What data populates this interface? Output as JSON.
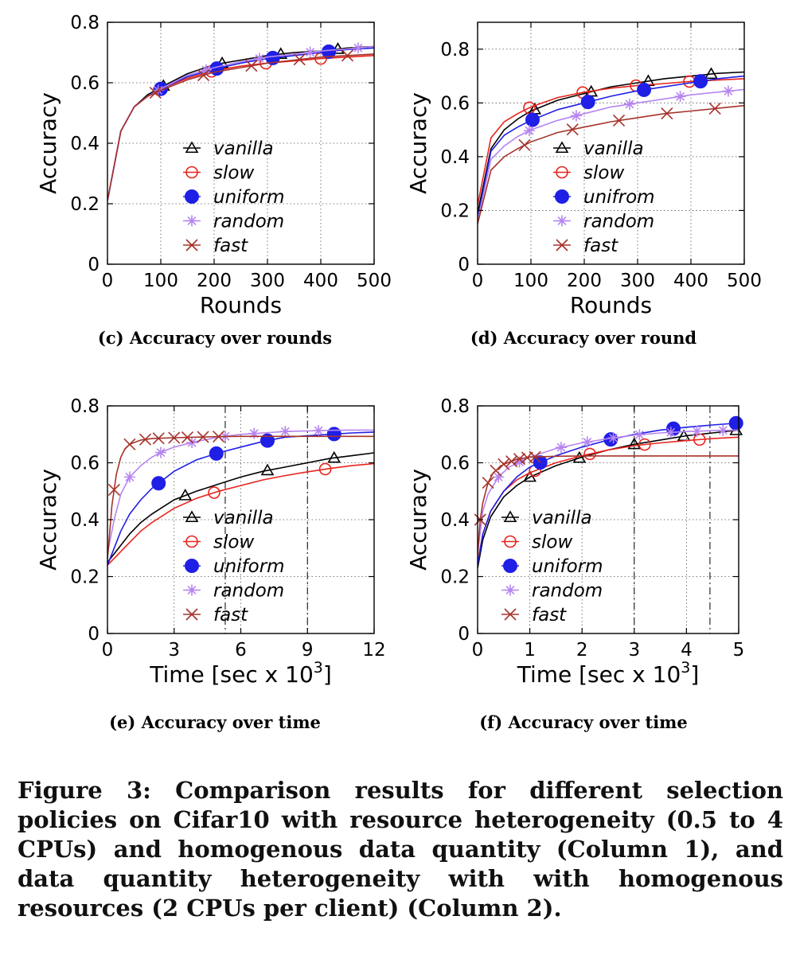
{
  "figure_caption": "Figure 3: Comparison results for different selection policies on Cifar10 with resource heterogeneity (0.5 to 4 CPUs) and homogenous data quantity (Column 1), and data quantity heterogeneity with with homogenous resources (2 CPUs per client) (Column 2).",
  "series_styles": {
    "vanilla": {
      "color": "#000000",
      "marker": "triangle-open"
    },
    "slow": {
      "color": "#e8241c",
      "marker": "circle-open"
    },
    "uniform": {
      "color": "#1f1fe6",
      "marker": "circle-filled"
    },
    "random": {
      "color": "#b685f0",
      "marker": "asterisk"
    },
    "fast": {
      "color": "#a5332b",
      "marker": "x-cross"
    }
  },
  "chart_data": [
    {
      "type": "line",
      "subtitle": "(c) Accuracy over rounds",
      "xlabel": "Rounds",
      "ylabel": "Accuracy",
      "xlim": [
        0,
        500
      ],
      "ylim": [
        0,
        0.8
      ],
      "xticks": [
        0,
        100,
        200,
        300,
        400,
        500
      ],
      "yticks": [
        0,
        0.2,
        0.4,
        0.6,
        0.8
      ],
      "grid": true,
      "legend_position": "bottom-center",
      "series": [
        {
          "name": "vanilla",
          "x": [
            0,
            25,
            50,
            75,
            100,
            150,
            200,
            250,
            300,
            350,
            400,
            450,
            500
          ],
          "y": [
            0.21,
            0.44,
            0.52,
            0.56,
            0.585,
            0.63,
            0.66,
            0.675,
            0.69,
            0.7,
            0.705,
            0.715,
            0.72
          ],
          "markers_x": [
            105,
            215,
            325,
            432
          ]
        },
        {
          "name": "slow",
          "x": [
            0,
            25,
            50,
            75,
            100,
            150,
            200,
            250,
            300,
            350,
            400,
            450,
            500
          ],
          "y": [
            0.21,
            0.44,
            0.52,
            0.555,
            0.58,
            0.615,
            0.64,
            0.655,
            0.665,
            0.672,
            0.68,
            0.685,
            0.69
          ],
          "markers_x": [
            97,
            195,
            297,
            400
          ]
        },
        {
          "name": "uniform",
          "x": [
            0,
            25,
            50,
            75,
            100,
            150,
            200,
            250,
            300,
            350,
            400,
            450,
            500
          ],
          "y": [
            0.21,
            0.44,
            0.52,
            0.555,
            0.58,
            0.62,
            0.645,
            0.665,
            0.68,
            0.69,
            0.7,
            0.71,
            0.715
          ],
          "markers_x": [
            100,
            205,
            310,
            415
          ]
        },
        {
          "name": "random",
          "x": [
            0,
            25,
            50,
            75,
            100,
            150,
            200,
            250,
            300,
            350,
            400,
            450,
            500
          ],
          "y": [
            0.21,
            0.44,
            0.52,
            0.555,
            0.58,
            0.625,
            0.65,
            0.67,
            0.685,
            0.695,
            0.705,
            0.712,
            0.72
          ],
          "markers_x": [
            95,
            185,
            285,
            380,
            470
          ]
        },
        {
          "name": "fast",
          "x": [
            0,
            25,
            50,
            75,
            100,
            150,
            200,
            250,
            300,
            350,
            400,
            450,
            500
          ],
          "y": [
            0.21,
            0.44,
            0.52,
            0.555,
            0.575,
            0.61,
            0.635,
            0.65,
            0.665,
            0.675,
            0.685,
            0.69,
            0.695
          ],
          "markers_x": [
            90,
            180,
            270,
            360,
            450
          ]
        }
      ]
    },
    {
      "type": "line",
      "subtitle": "(d) Accuracy over round",
      "xlabel": "Rounds",
      "ylabel": "Accuracy",
      "xlim": [
        0,
        500
      ],
      "ylim": [
        0,
        0.9
      ],
      "xticks": [
        0,
        100,
        200,
        300,
        400,
        500
      ],
      "yticks": [
        0,
        0.2,
        0.4,
        0.6,
        0.8
      ],
      "grid": true,
      "legend_position": "bottom-center",
      "series": [
        {
          "name": "vanilla",
          "x": [
            0,
            25,
            50,
            75,
            100,
            150,
            200,
            250,
            300,
            350,
            400,
            450,
            500
          ],
          "y": [
            0.19,
            0.43,
            0.5,
            0.54,
            0.57,
            0.61,
            0.635,
            0.66,
            0.675,
            0.69,
            0.7,
            0.71,
            0.715
          ],
          "markers_x": [
            107,
            213,
            320,
            438
          ]
        },
        {
          "name": "slow",
          "x": [
            0,
            25,
            50,
            75,
            100,
            150,
            200,
            250,
            300,
            350,
            400,
            450,
            500
          ],
          "y": [
            0.22,
            0.47,
            0.53,
            0.56,
            0.585,
            0.62,
            0.64,
            0.655,
            0.665,
            0.672,
            0.68,
            0.685,
            0.69
          ],
          "markers_x": [
            97,
            197,
            297,
            397
          ]
        },
        {
          "name": "unifrom",
          "x": [
            0,
            25,
            50,
            75,
            100,
            150,
            200,
            250,
            300,
            350,
            400,
            450,
            500
          ],
          "y": [
            0.17,
            0.42,
            0.48,
            0.51,
            0.535,
            0.575,
            0.6,
            0.625,
            0.645,
            0.66,
            0.675,
            0.69,
            0.7
          ],
          "markers_x": [
            103,
            207,
            312,
            418
          ]
        },
        {
          "name": "random",
          "x": [
            0,
            25,
            50,
            75,
            100,
            150,
            200,
            250,
            300,
            350,
            400,
            450,
            500
          ],
          "y": [
            0.16,
            0.39,
            0.44,
            0.475,
            0.5,
            0.535,
            0.56,
            0.585,
            0.6,
            0.615,
            0.63,
            0.64,
            0.65
          ],
          "markers_x": [
            97,
            185,
            285,
            380,
            470
          ]
        },
        {
          "name": "fast",
          "x": [
            0,
            25,
            50,
            75,
            100,
            150,
            200,
            250,
            300,
            350,
            400,
            450,
            500
          ],
          "y": [
            0.15,
            0.35,
            0.4,
            0.43,
            0.455,
            0.49,
            0.51,
            0.53,
            0.545,
            0.56,
            0.57,
            0.58,
            0.59
          ],
          "markers_x": [
            88,
            178,
            265,
            355,
            445
          ]
        }
      ]
    },
    {
      "type": "line",
      "subtitle": "(e) Accuracy over time",
      "xlabel": "Time [sec x 10",
      "xlabel_sup": "3",
      "xlabel_suffix": "]",
      "ylabel": "Accuracy",
      "xlim": [
        0,
        12
      ],
      "ylim": [
        0,
        0.8
      ],
      "xticks": [
        0,
        3,
        6,
        9,
        12
      ],
      "yticks": [
        0,
        0.2,
        0.4,
        0.6,
        0.8
      ],
      "grid": true,
      "legend_position": "bottom-center",
      "vlines": [
        5.3,
        9.0
      ],
      "series": [
        {
          "name": "vanilla",
          "x": [
            0,
            0.5,
            1,
            1.5,
            2,
            3,
            4,
            5,
            6,
            7,
            8,
            9,
            10,
            11,
            12
          ],
          "y": [
            0.25,
            0.3,
            0.35,
            0.39,
            0.42,
            0.47,
            0.5,
            0.525,
            0.55,
            0.57,
            0.585,
            0.6,
            0.615,
            0.625,
            0.635
          ],
          "markers_x": [
            3.5,
            7.2,
            10.2
          ]
        },
        {
          "name": "slow",
          "x": [
            0,
            0.5,
            1,
            1.5,
            2,
            3,
            4,
            5,
            6,
            7,
            8,
            9,
            10,
            11,
            12
          ],
          "y": [
            0.24,
            0.28,
            0.32,
            0.36,
            0.39,
            0.44,
            0.475,
            0.5,
            0.52,
            0.54,
            0.555,
            0.568,
            0.58,
            0.59,
            0.597
          ],
          "markers_x": [
            4.8,
            9.8
          ]
        },
        {
          "name": "uniform",
          "x": [
            0,
            0.3,
            0.6,
            1,
            1.5,
            2,
            2.5,
            3,
            4,
            5,
            6,
            7,
            8,
            9,
            10,
            11,
            12
          ],
          "y": [
            0.24,
            0.3,
            0.36,
            0.42,
            0.47,
            0.51,
            0.54,
            0.57,
            0.61,
            0.635,
            0.655,
            0.675,
            0.69,
            0.695,
            0.7,
            0.705,
            0.708
          ],
          "markers_x": [
            2.3,
            4.9,
            7.2,
            10.2
          ]
        },
        {
          "name": "random",
          "x": [
            0,
            0.3,
            0.6,
            1,
            1.5,
            2,
            2.5,
            3,
            4,
            5,
            6,
            7,
            8,
            9,
            10,
            11,
            12
          ],
          "y": [
            0.28,
            0.4,
            0.49,
            0.55,
            0.59,
            0.62,
            0.64,
            0.655,
            0.675,
            0.69,
            0.7,
            0.705,
            0.71,
            0.712,
            0.714,
            0.715,
            0.715
          ],
          "markers_x": [
            1.0,
            2.4,
            3.8,
            5.3,
            6.6,
            8.0,
            9.5
          ]
        },
        {
          "name": "fast",
          "x": [
            0,
            0.2,
            0.4,
            0.6,
            0.8,
            1,
            1.5,
            2,
            3,
            4,
            5,
            6,
            8,
            10,
            12
          ],
          "y": [
            0.26,
            0.45,
            0.56,
            0.62,
            0.65,
            0.665,
            0.68,
            0.685,
            0.688,
            0.69,
            0.692,
            0.693,
            0.693,
            0.693,
            0.693
          ],
          "markers_x": [
            0.3,
            1.0,
            1.7,
            2.3,
            3.0,
            3.6,
            4.3,
            5.0
          ]
        }
      ]
    },
    {
      "type": "line",
      "subtitle": "(f) Accuracy over time",
      "xlabel": "Time [sec x 10",
      "xlabel_sup": "3",
      "xlabel_suffix": "]",
      "ylabel": "Accuracy",
      "xlim": [
        0,
        5
      ],
      "ylim": [
        0,
        0.8
      ],
      "xticks": [
        0,
        1,
        2,
        3,
        4,
        5
      ],
      "yticks": [
        0,
        0.2,
        0.4,
        0.6,
        0.8
      ],
      "grid": true,
      "legend_position": "bottom-center",
      "vlines": [
        3.0,
        4.45
      ],
      "series": [
        {
          "name": "vanilla",
          "x": [
            0,
            0.1,
            0.25,
            0.5,
            0.75,
            1,
            1.5,
            2,
            2.5,
            3,
            3.5,
            4,
            4.5,
            5
          ],
          "y": [
            0.23,
            0.33,
            0.41,
            0.48,
            0.52,
            0.55,
            0.59,
            0.62,
            0.645,
            0.665,
            0.68,
            0.695,
            0.705,
            0.715
          ],
          "markers_x": [
            1.0,
            1.95,
            3.0,
            3.95,
            4.95
          ]
        },
        {
          "name": "slow",
          "x": [
            0,
            0.1,
            0.25,
            0.5,
            0.75,
            1,
            1.5,
            2,
            2.5,
            3,
            3.5,
            4,
            4.5,
            5
          ],
          "y": [
            0.25,
            0.35,
            0.43,
            0.5,
            0.54,
            0.565,
            0.6,
            0.625,
            0.645,
            0.66,
            0.67,
            0.678,
            0.685,
            0.69
          ],
          "markers_x": [
            1.1,
            2.15,
            3.2,
            4.25
          ]
        },
        {
          "name": "uniform",
          "x": [
            0,
            0.1,
            0.25,
            0.5,
            0.75,
            1,
            1.5,
            2,
            2.5,
            3,
            3.5,
            4,
            4.5,
            5
          ],
          "y": [
            0.24,
            0.35,
            0.43,
            0.5,
            0.55,
            0.585,
            0.625,
            0.655,
            0.68,
            0.7,
            0.715,
            0.725,
            0.733,
            0.74
          ],
          "markers_x": [
            1.2,
            2.55,
            3.75,
            4.95
          ]
        },
        {
          "name": "random",
          "x": [
            0,
            0.1,
            0.2,
            0.4,
            0.6,
            1,
            1.5,
            2,
            2.5,
            3,
            3.5,
            4,
            4.5,
            5
          ],
          "y": [
            0.28,
            0.43,
            0.49,
            0.55,
            0.585,
            0.62,
            0.65,
            0.67,
            0.685,
            0.697,
            0.705,
            0.71,
            0.713,
            0.715
          ],
          "markers_x": [
            0.4,
            0.8,
            1.6,
            2.1,
            2.6,
            3.1,
            3.7,
            4.2,
            4.7
          ]
        },
        {
          "name": "fast",
          "x": [
            0,
            0.05,
            0.1,
            0.2,
            0.3,
            0.5,
            0.75,
            1,
            1.5,
            2,
            3,
            4,
            5
          ],
          "y": [
            0.28,
            0.4,
            0.46,
            0.53,
            0.565,
            0.595,
            0.612,
            0.62,
            0.623,
            0.624,
            0.624,
            0.624,
            0.624
          ],
          "markers_x": [
            0.05,
            0.2,
            0.35,
            0.5,
            0.65,
            0.8,
            0.95,
            1.1
          ]
        }
      ]
    }
  ]
}
